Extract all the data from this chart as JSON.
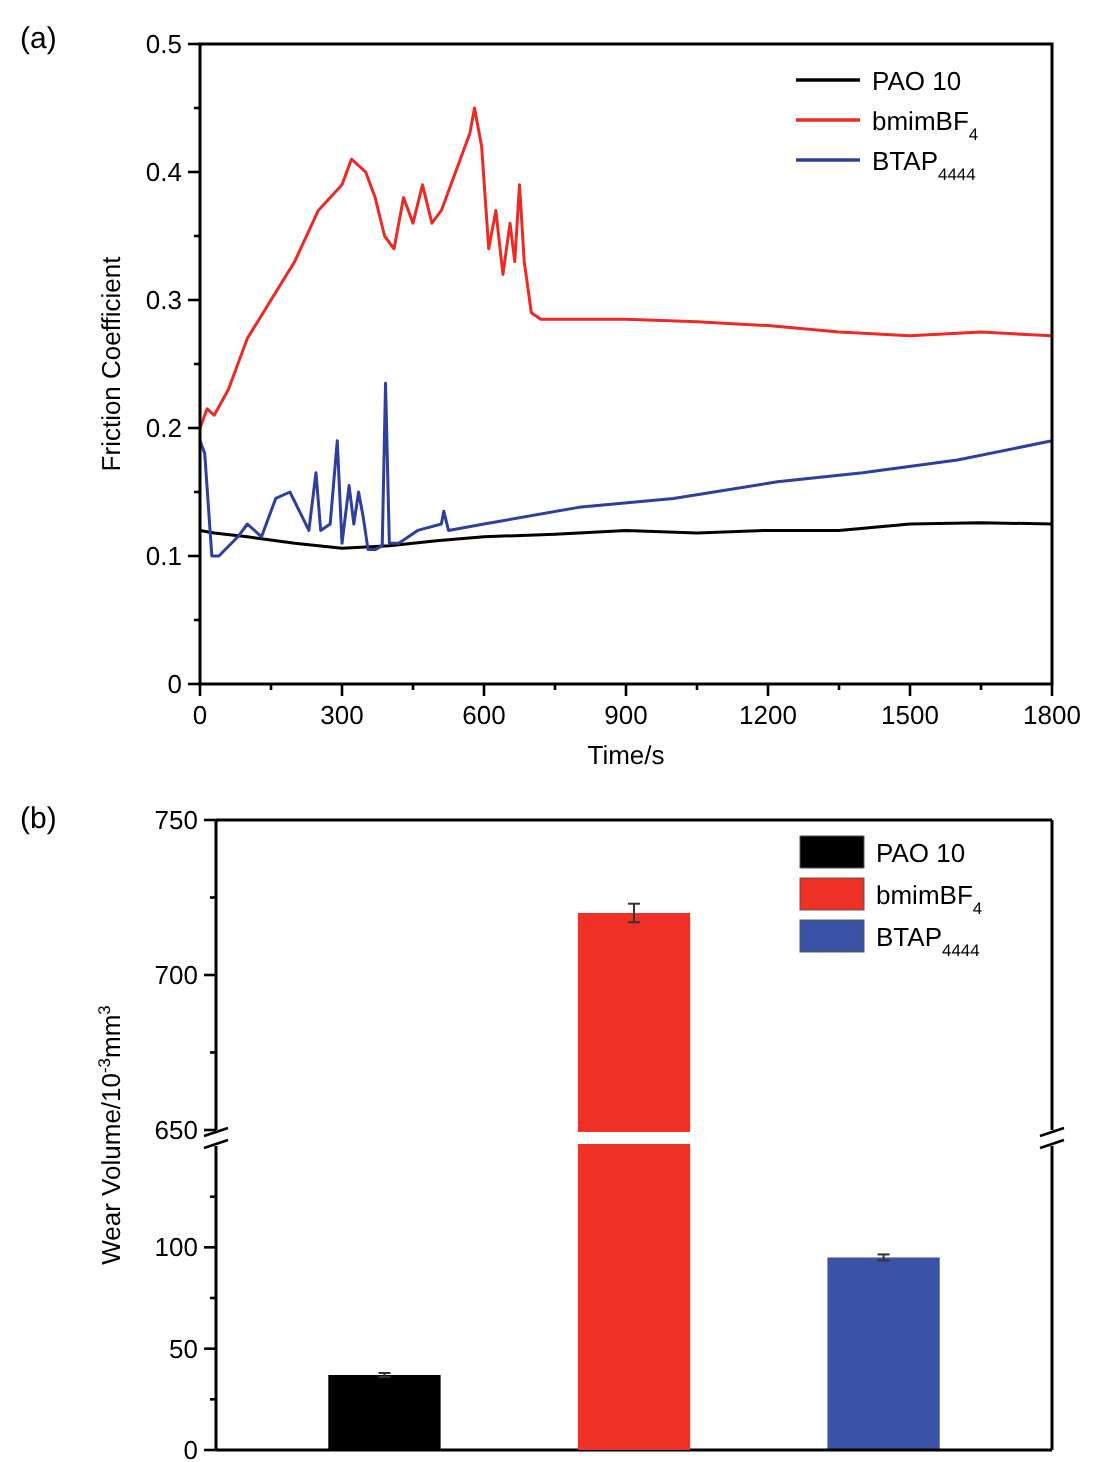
{
  "chart_data": [
    {
      "type": "line",
      "title": "(a)",
      "xlabel": "Time/s",
      "ylabel": "Friction Coefficient",
      "legend": "top right",
      "xlim": [
        0,
        1800
      ],
      "ylim": [
        0,
        0.5
      ],
      "xticks": [
        0,
        {
          "value": 150,
          "label": null
        },
        300,
        {
          "value": 450,
          "label": null
        },
        600,
        {
          "value": 750,
          "label": null
        },
        900,
        {
          "value": 1050,
          "label": null
        },
        1200,
        {
          "value": 1350,
          "label": null
        },
        1500,
        {
          "value": 1650,
          "label": null
        },
        1800
      ],
      "yticks": [
        0.0,
        {
          "value": 0.05,
          "label": null
        },
        0.1,
        {
          "value": 0.15,
          "label": null
        },
        0.2,
        {
          "value": 0.25,
          "label": null
        },
        0.3,
        {
          "value": 0.35,
          "label": null
        },
        0.4,
        {
          "value": 0.45,
          "label": null
        },
        0.5
      ],
      "series": [
        {
          "name": "PAO 10",
          "color": "#000000",
          "x": [
            0,
            30,
            100,
            200,
            300,
            400,
            500,
            600,
            750,
            900,
            1050,
            1200,
            1350,
            1500,
            1650,
            1800
          ],
          "values": [
            0.12,
            0.118,
            0.115,
            0.11,
            0.106,
            0.108,
            0.112,
            0.115,
            0.117,
            0.12,
            0.118,
            0.12,
            0.12,
            0.125,
            0.126,
            0.125
          ]
        },
        {
          "name": "bmimBF$_{4}$",
          "color": "#ee2a24",
          "x": [
            0,
            15,
            30,
            60,
            100,
            150,
            200,
            250,
            300,
            320,
            350,
            370,
            390,
            410,
            430,
            450,
            470,
            490,
            510,
            540,
            570,
            580,
            595,
            610,
            625,
            640,
            655,
            665,
            675,
            685,
            700,
            720,
            900,
            1050,
            1200,
            1350,
            1500,
            1650,
            1800
          ],
          "values": [
            0.2,
            0.215,
            0.21,
            0.23,
            0.27,
            0.3,
            0.33,
            0.37,
            0.39,
            0.41,
            0.4,
            0.38,
            0.35,
            0.34,
            0.38,
            0.36,
            0.39,
            0.36,
            0.37,
            0.4,
            0.43,
            0.45,
            0.42,
            0.34,
            0.37,
            0.32,
            0.36,
            0.33,
            0.39,
            0.33,
            0.29,
            0.285,
            0.285,
            0.283,
            0.28,
            0.275,
            0.272,
            0.275,
            0.272
          ]
        },
        {
          "name": "BTAP$_{4444}$",
          "color": "#2e3f9e",
          "x": [
            0,
            10,
            25,
            40,
            80,
            100,
            130,
            160,
            190,
            210,
            230,
            245,
            255,
            275,
            290,
            300,
            315,
            325,
            335,
            345,
            355,
            370,
            385,
            392,
            400,
            420,
            460,
            510,
            515,
            525,
            600,
            800,
            1000,
            1220,
            1400,
            1600,
            1800
          ],
          "values": [
            0.19,
            0.18,
            0.1,
            0.1,
            0.115,
            0.125,
            0.115,
            0.145,
            0.15,
            0.135,
            0.12,
            0.165,
            0.12,
            0.125,
            0.19,
            0.11,
            0.155,
            0.125,
            0.15,
            0.13,
            0.105,
            0.105,
            0.108,
            0.235,
            0.11,
            0.11,
            0.12,
            0.125,
            0.135,
            0.12,
            0.125,
            0.138,
            0.145,
            0.158,
            0.165,
            0.175,
            0.19
          ]
        }
      ]
    },
    {
      "type": "bar",
      "title": "(b)",
      "ylabel": "Wear Volume/10$^{-3}$mm$^{3}$",
      "legend": "top right",
      "tick_labels": "y",
      "categories": [
        null,
        null,
        null
      ],
      "ylim": [
        650,
        750
      ],
      "yticks": [
        650,
        {
          "value": 675,
          "label": null
        },
        700,
        {
          "value": 725,
          "label": null
        },
        750
      ],
      "series": [
        {
          "name": "PAO 10",
          "color": "#000000",
          "values": [
            null,
            null,
            null
          ]
        },
        {
          "name": "bmimBF$_{4}$",
          "color": "#ee3124",
          "values": [
            null,
            720,
            null
          ],
          "errors": [
            null,
            3,
            null
          ]
        },
        {
          "name": "BTAP$_{4444}$",
          "color": "#3a53a4",
          "values": [
            null,
            null,
            null
          ]
        }
      ]
    },
    {
      "type": "bar",
      "tick_labels": "y",
      "categories": [
        null,
        null,
        null
      ],
      "ylim": [
        0,
        150
      ],
      "yticks": [
        0,
        {
          "value": 25,
          "label": null
        },
        50,
        {
          "value": 75,
          "label": null
        },
        100,
        {
          "value": 125,
          "label": null
        }
      ],
      "series": [
        {
          "color": "#000000",
          "values": [
            37,
            null,
            null
          ],
          "errors": [
            1,
            null,
            null
          ]
        },
        {
          "color": "#3a53a4",
          "values": [
            null,
            null,
            95
          ],
          "errors": [
            null,
            null,
            1.5
          ]
        }
      ]
    }
  ]
}
